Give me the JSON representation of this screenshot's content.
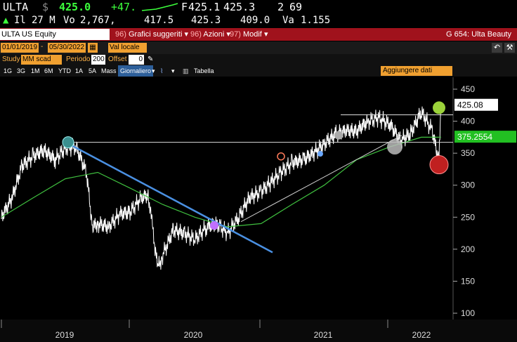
{
  "quote": {
    "ticker": "ULTA",
    "currency_symbol": "$",
    "last_price": "425.0",
    "change": "+47.",
    "open_label": "F",
    "open_value": "425.1",
    "ask_value": "425.3",
    "size_label": "2",
    "size_value": "69",
    "vol_prefix": "Il",
    "vol_value": "27 M",
    "vo_label": "Vo",
    "vo_value": "2,767,",
    "open2_value": "417.5",
    "high_value": "425.3",
    "low_value": "409.0",
    "va_label": "Va",
    "va_value": "1.155"
  },
  "toolbar": {
    "security": "ULTA US Equity",
    "suggested_num": "96)",
    "suggested_label": "Grafici suggeriti",
    "actions_num": "96)",
    "actions_label": "Azioni",
    "edit_num": "97)",
    "edit_label": "Modif",
    "function": "G 654: Ulta Beauty"
  },
  "params": {
    "start_date": "01/01/2019",
    "end_date": "05/30/2022",
    "currency": "Val locale"
  },
  "study": {
    "study_label": "Study",
    "study_value": "MM scad",
    "period_label": "Periodo",
    "period_value": "200",
    "offset_label": "Offset",
    "offset_value": "0"
  },
  "ranges": {
    "items": [
      "1G",
      "3G",
      "1M",
      "6M",
      "YTD",
      "1A",
      "5A",
      "Mass"
    ],
    "frequency": "Giornaliero",
    "table": "Tabella",
    "add_data": "Aggiungere dati"
  },
  "chart_data": {
    "type": "line",
    "title": "",
    "xlabel": "",
    "ylabel": "",
    "ylim": [
      100,
      450
    ],
    "y_ticks": [
      100,
      150,
      200,
      250,
      300,
      350,
      400,
      450
    ],
    "x_ticks": [
      "2019",
      "2020",
      "2021",
      "2022"
    ],
    "last_price_label": "425.08",
    "ma_label": "375.2554",
    "colors": {
      "price": "#ffffff",
      "ma": "#3fbf3f",
      "trend": "#4a90e2",
      "last_box": "#ffffff",
      "ma_box": "#22c022"
    },
    "series": [
      {
        "values_x": [
          "2019-01-02",
          "2019-02-01",
          "2019-03-01",
          "2019-04-01",
          "2019-05-01",
          "2019-06-03",
          "2019-07-01",
          "2019-08-01",
          "2019-08-30",
          "2019-09-16",
          "2019-10-01",
          "2019-11-01",
          "2019-12-02",
          "2019-12-31",
          "2020-01-31",
          "2020-02-20",
          "2020-03-02",
          "2020-03-18",
          "2020-04-01",
          "2020-05-01",
          "2020-06-01",
          "2020-07-01",
          "2020-08-03",
          "2020-09-01",
          "2020-10-01",
          "2020-11-02",
          "2020-12-01",
          "2021-01-04",
          "2021-02-01",
          "2021-03-01",
          "2021-04-01",
          "2021-05-03",
          "2021-06-01",
          "2021-07-01",
          "2021-08-02",
          "2021-09-01",
          "2021-10-01",
          "2021-11-01",
          "2021-12-01",
          "2022-01-03",
          "2022-02-01",
          "2022-03-01",
          "2022-04-01",
          "2022-05-02",
          "2022-05-20",
          "2022-05-27"
        ],
        "values": [
          250,
          280,
          330,
          345,
          355,
          340,
          358,
          360,
          320,
          235,
          240,
          235,
          255,
          258,
          280,
          285,
          240,
          170,
          190,
          230,
          225,
          215,
          235,
          240,
          225,
          250,
          280,
          290,
          305,
          320,
          335,
          340,
          350,
          365,
          380,
          385,
          385,
          400,
          405,
          395,
          370,
          380,
          415,
          385,
          340,
          425
        ]
      },
      {
        "values_x": [
          "2019-01-02",
          "2019-04-01",
          "2019-07-01",
          "2019-10-01",
          "2020-01-02",
          "2020-04-01",
          "2020-07-01",
          "2020-10-01",
          "2021-01-04",
          "2021-04-01",
          "2021-07-01",
          "2021-10-01",
          "2022-01-03",
          "2022-04-01",
          "2022-05-27"
        ],
        "values": [
          250,
          280,
          310,
          320,
          295,
          270,
          250,
          235,
          240,
          270,
          300,
          340,
          360,
          375,
          375
        ]
      }
    ]
  }
}
